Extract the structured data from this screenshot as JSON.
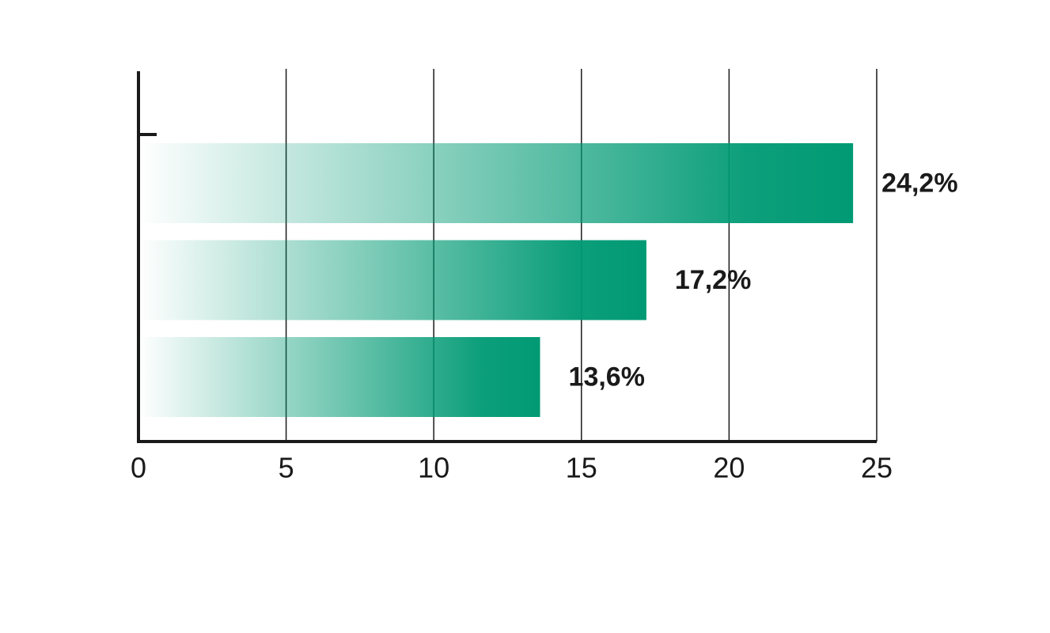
{
  "chart_data": {
    "type": "bar",
    "orientation": "horizontal",
    "categories": [
      null,
      null,
      null
    ],
    "values": [
      24.2,
      17.2,
      13.6
    ],
    "value_labels": [
      "24,2%",
      "17,2%",
      "13,6%"
    ],
    "color": "#009a74",
    "xlim": [
      0,
      25
    ],
    "xticks": [
      0,
      5,
      10,
      15,
      20,
      25
    ],
    "grid": true
  }
}
